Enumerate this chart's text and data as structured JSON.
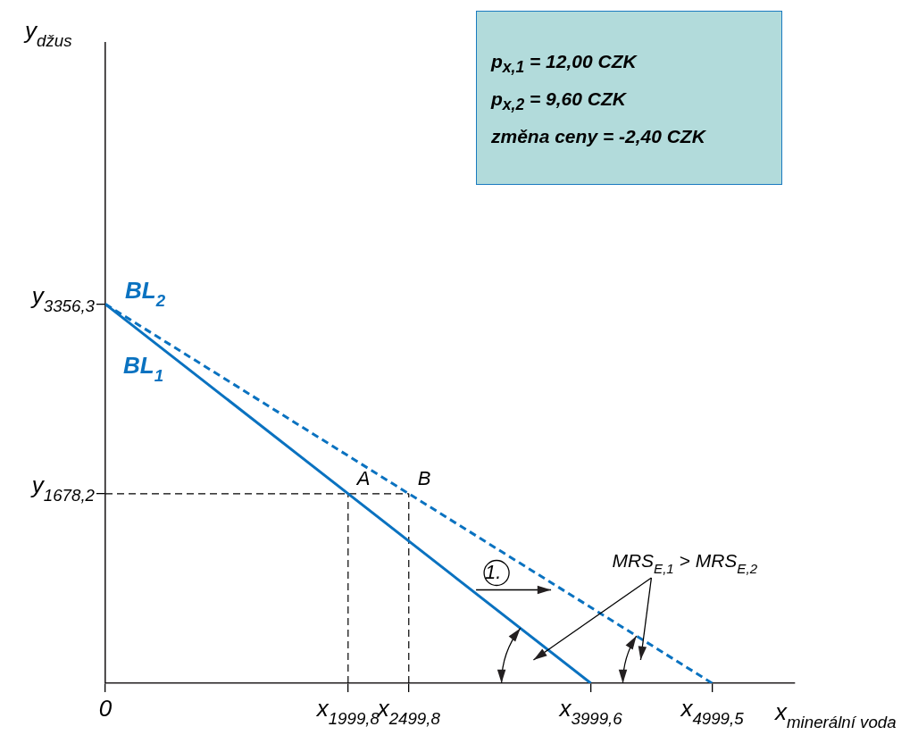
{
  "chart_data": {
    "type": "line",
    "xlabel": "x$_{minerální voda}$",
    "ylabel": "y$_{džus}$",
    "xlim": [
      0,
      5680
    ],
    "ylim": [
      0,
      5670
    ],
    "xticks": [
      {
        "value": 0,
        "label": "0"
      },
      {
        "value": 1999.8,
        "label": "x$_{1999,8}$"
      },
      {
        "value": 2499.8,
        "label": "x$_{2499,8}$"
      },
      {
        "value": 3999.6,
        "label": "x$_{3999,6}$"
      },
      {
        "value": 4999.5,
        "label": "x$_{4999,5}$"
      }
    ],
    "yticks": [
      {
        "value": 1678.2,
        "label": "y$_{1678,2}$"
      },
      {
        "value": 3356.3,
        "label": "y$_{3356,3}$"
      }
    ],
    "series": [
      {
        "name": "BL$_{1}$",
        "color": "#0a72c0",
        "x": [
          0,
          3999.6
        ],
        "values": [
          3356.3,
          0
        ],
        "line_style": "solid"
      },
      {
        "name": "BL$_{2}$",
        "color": "#0a72c0",
        "x": [
          0,
          4999.5
        ],
        "values": [
          3356.3,
          0
        ],
        "line_style": "dashed"
      },
      {
        "color": "#000000",
        "x": [
          0,
          2499.8
        ],
        "values": [
          1678.2,
          1678.2
        ],
        "line_style": "dashed"
      },
      {
        "color": "#000000",
        "x": [
          1999.8,
          1999.8
        ],
        "values": [
          0,
          1678.2
        ],
        "line_style": "dashed"
      },
      {
        "color": "#000000",
        "x": [
          2499.8,
          2499.8
        ],
        "values": [
          0,
          1678.2
        ],
        "line_style": "dashed"
      }
    ],
    "annotations": [
      "p$_{x,1}$ = 12,00 CZK",
      "p$_{x,2}$ = 9,60 CZK",
      "změna ceny = -2,40 CZK",
      {
        "text": "A",
        "x": 1999.8,
        "y": 1678.2
      },
      {
        "text": "B",
        "x": 2499.8,
        "y": 1678.2
      },
      {
        "text": "1.",
        "x": 3054,
        "y": 850
      },
      "MRS$_{E,1}$ > MRS$_{E,2}$"
    ],
    "marker": "none",
    "grid": false,
    "legend": false
  }
}
